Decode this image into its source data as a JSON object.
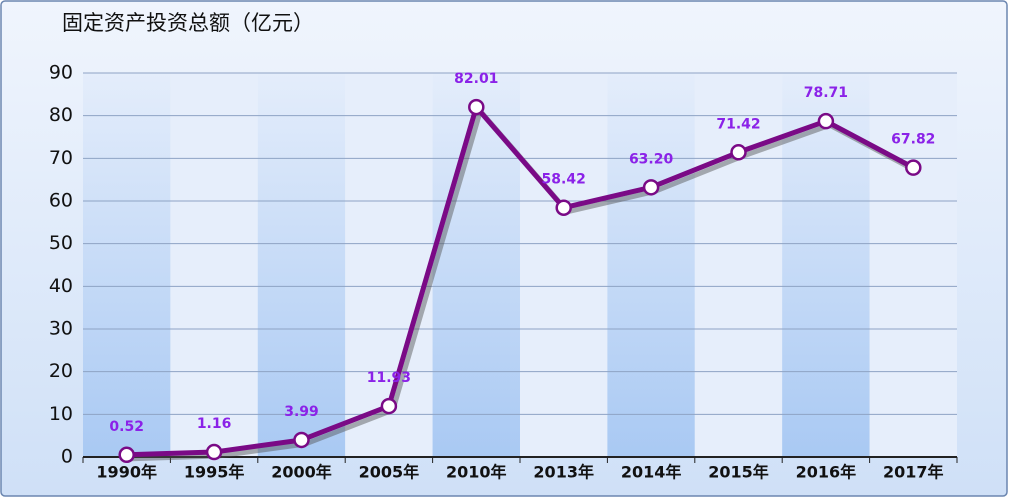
{
  "chart_data": {
    "type": "line",
    "title": "固定资产投资总额（亿元）",
    "categories": [
      "1990年",
      "1995年",
      "2000年",
      "2005年",
      "2010年",
      "2013年",
      "2014年",
      "2015年",
      "2016年",
      "2017年"
    ],
    "values": [
      0.52,
      1.16,
      3.99,
      11.93,
      82.01,
      58.42,
      63.2,
      71.42,
      78.71,
      67.82
    ],
    "value_labels": [
      "0.52",
      "1.16",
      "3.99",
      "11.93",
      "82.01",
      "58.42",
      "63.20",
      "71.42",
      "78.71",
      "67.82"
    ],
    "color": "#7a0a86",
    "label_color": "#8b22e8",
    "ylim": [
      0,
      90
    ],
    "yticks": [
      0,
      10,
      20,
      30,
      40,
      50,
      60,
      70,
      80,
      90
    ],
    "grid": true
  }
}
